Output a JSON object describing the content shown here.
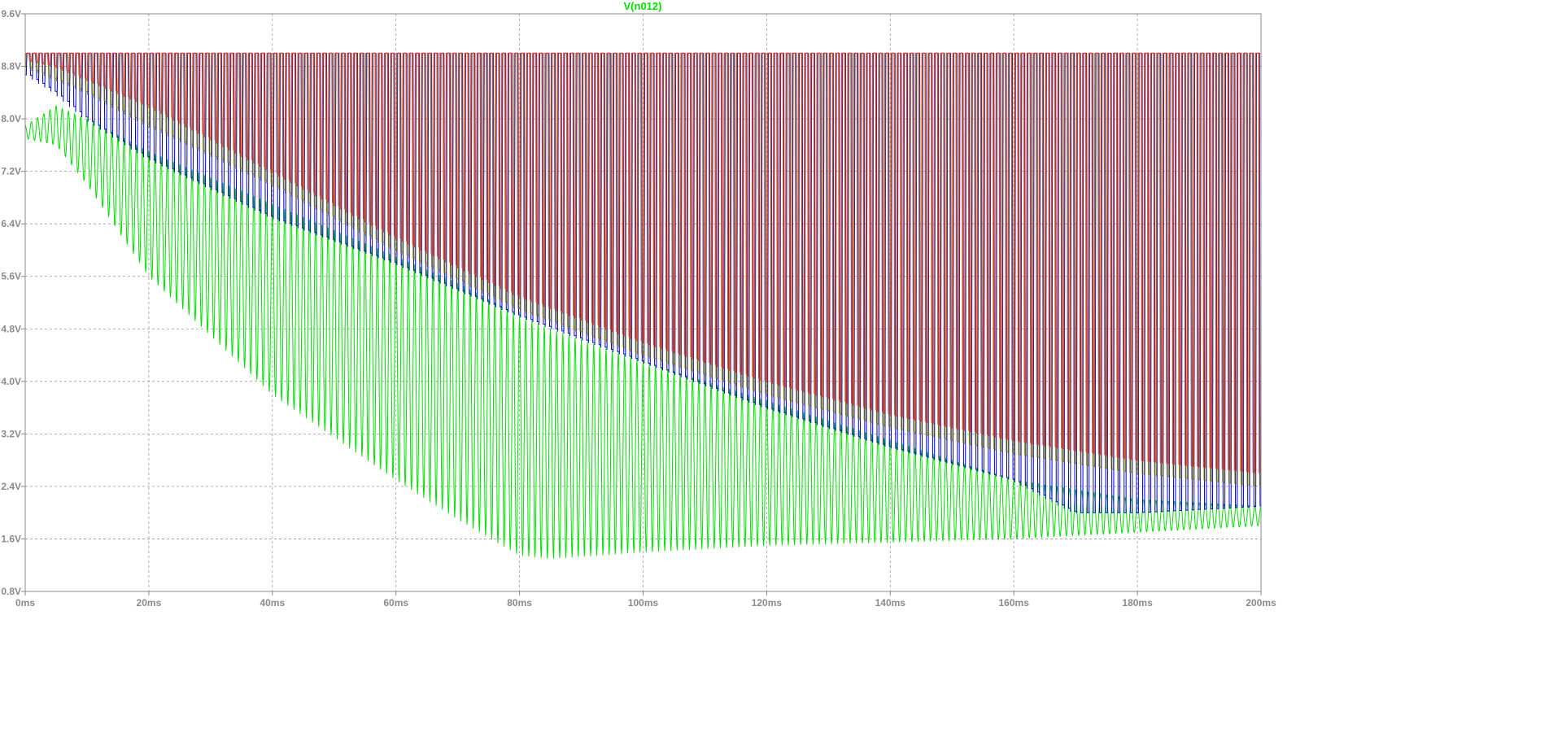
{
  "chart_data": {
    "type": "line",
    "title": "V(n012)",
    "xlabel": "",
    "ylabel": "",
    "x_unit": "ms",
    "y_unit": "V",
    "xlim": [
      0,
      200
    ],
    "ylim": [
      0.8,
      9.6
    ],
    "x_ticks": [
      0,
      20,
      40,
      60,
      80,
      100,
      120,
      140,
      160,
      180,
      200
    ],
    "x_tick_labels": [
      "0ms",
      "20ms",
      "40ms",
      "60ms",
      "80ms",
      "100ms",
      "120ms",
      "140ms",
      "160ms",
      "180ms",
      "200ms"
    ],
    "y_ticks": [
      0.8,
      1.6,
      2.4,
      3.2,
      4.0,
      4.8,
      5.6,
      6.4,
      7.2,
      8.0,
      8.8,
      9.6
    ],
    "y_tick_labels": [
      "0.8V",
      "1.6V",
      "2.4V",
      "3.2V",
      "4.0V",
      "4.8V",
      "5.6V",
      "6.4V",
      "7.2V",
      "8.0V",
      "8.8V",
      "9.6V"
    ],
    "grid": true,
    "colors": {
      "title": "#00e000",
      "axis": "#8a8a8a",
      "grid": "#9a9a9a",
      "red": "#ff3030",
      "blue": "#0000c8",
      "olive": "#808000",
      "green": "#00e000"
    },
    "oscillation": {
      "cycles_in_window": 200,
      "description": "square-like switching waveforms between a top rail and a slowly varying lower envelope"
    },
    "series": [
      {
        "color_key": "red",
        "top": 9.0,
        "envelope_x": [
          0,
          5,
          10,
          20,
          40,
          60,
          80,
          100,
          120,
          140,
          160,
          180,
          200
        ],
        "envelope_low": [
          8.9,
          8.8,
          8.6,
          8.2,
          7.2,
          6.2,
          5.3,
          4.6,
          4.0,
          3.5,
          3.1,
          2.8,
          2.6
        ]
      },
      {
        "color_key": "olive",
        "top": 9.0,
        "envelope_x": [
          0,
          5,
          10,
          20,
          40,
          60,
          80,
          100,
          120,
          140,
          160,
          180,
          200
        ],
        "envelope_low": [
          8.8,
          8.6,
          8.4,
          7.9,
          7.0,
          6.0,
          5.1,
          4.4,
          3.8,
          3.3,
          2.9,
          2.6,
          2.4
        ]
      },
      {
        "color_key": "blue",
        "top": 9.0,
        "envelope_x": [
          0,
          5,
          10,
          20,
          40,
          60,
          80,
          100,
          120,
          140,
          160,
          170,
          180,
          200
        ],
        "envelope_low": [
          8.7,
          8.4,
          8.0,
          7.4,
          6.5,
          5.8,
          5.0,
          4.3,
          3.6,
          3.0,
          2.5,
          2.0,
          2.0,
          2.1
        ]
      },
      {
        "color_key": "green",
        "envelope_x": [
          0,
          5,
          10,
          20,
          40,
          60,
          70,
          80,
          85,
          100,
          120,
          140,
          160,
          180,
          200
        ],
        "envelope_high": [
          7.9,
          8.2,
          8.0,
          7.5,
          6.7,
          5.9,
          5.5,
          5.0,
          4.8,
          4.3,
          3.7,
          3.1,
          2.5,
          2.2,
          2.1
        ],
        "envelope_low": [
          7.7,
          7.6,
          7.0,
          5.6,
          3.8,
          2.5,
          1.9,
          1.35,
          1.3,
          1.4,
          1.5,
          1.55,
          1.6,
          1.7,
          1.8
        ]
      }
    ]
  }
}
